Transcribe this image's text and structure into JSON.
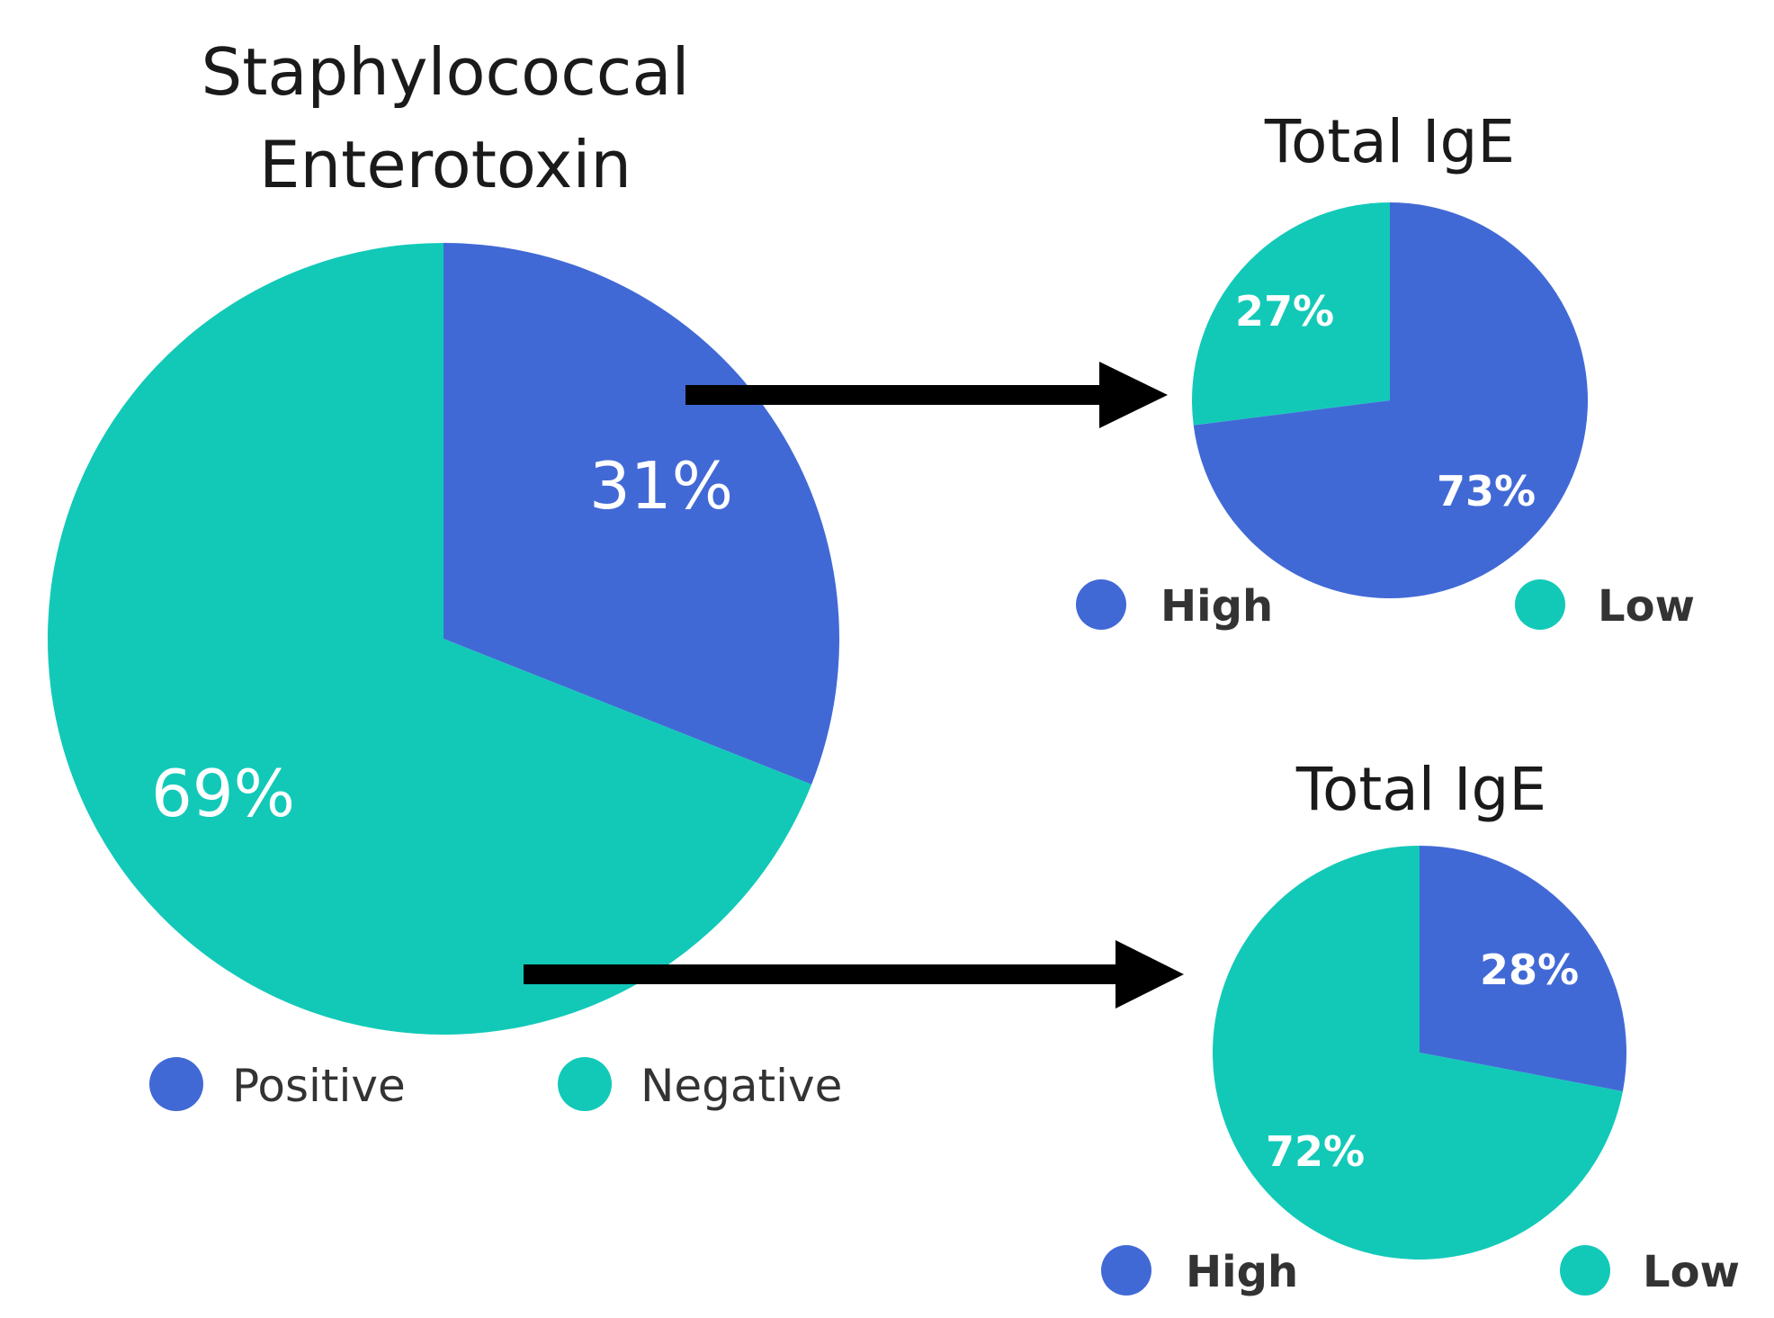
{
  "colors": {
    "blue": "#4169d6",
    "teal": "#12c9b8",
    "arrow": "#000000"
  },
  "chart_data": [
    {
      "type": "pie",
      "id": "main",
      "title": [
        "Staphylococcal",
        "Enterotoxin"
      ],
      "slices": [
        {
          "label": "Positive",
          "value": 31,
          "text": "31%"
        },
        {
          "label": "Negative",
          "value": 69,
          "text": "69%"
        }
      ],
      "legend": [
        "Positive",
        "Negative"
      ]
    },
    {
      "type": "pie",
      "id": "top",
      "title": [
        "Total IgE"
      ],
      "slices": [
        {
          "label": "High",
          "value": 73,
          "text": "73%"
        },
        {
          "label": "Low",
          "value": 27,
          "text": "27%"
        }
      ],
      "legend": [
        "High",
        "Low"
      ]
    },
    {
      "type": "pie",
      "id": "bottom",
      "title": [
        "Total IgE"
      ],
      "slices": [
        {
          "label": "High",
          "value": 28,
          "text": "28%"
        },
        {
          "label": "Low",
          "value": 72,
          "text": "72%"
        }
      ],
      "legend": [
        "High",
        "Low"
      ]
    }
  ]
}
